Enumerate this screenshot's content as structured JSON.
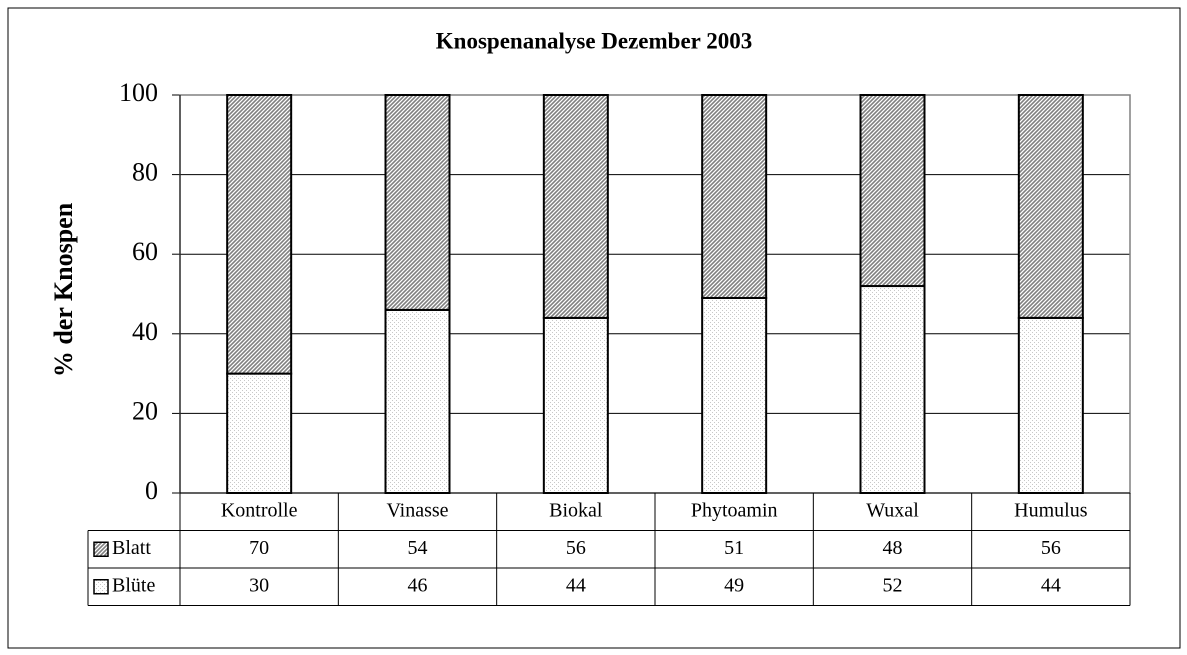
{
  "chart_data": {
    "type": "stacked-bar",
    "title": "Knospenanalyse Dezember 2003",
    "y_label": "% der Knospen",
    "categories": [
      "Kontrolle",
      "Vinasse",
      "Biokal",
      "Phytoamin",
      "Wuxal",
      "Humulus"
    ],
    "series": [
      {
        "name": "Blatt",
        "color": "#808080",
        "values": [
          70,
          54,
          56,
          51,
          48,
          56
        ]
      },
      {
        "name": "Blüte",
        "color": "#c8c8c8",
        "values": [
          30,
          46,
          44,
          49,
          52,
          44
        ]
      }
    ],
    "ylim": [
      0,
      100
    ],
    "yticks": [
      0,
      20,
      40,
      60,
      80,
      100
    ],
    "grid": true,
    "data_table": true
  }
}
